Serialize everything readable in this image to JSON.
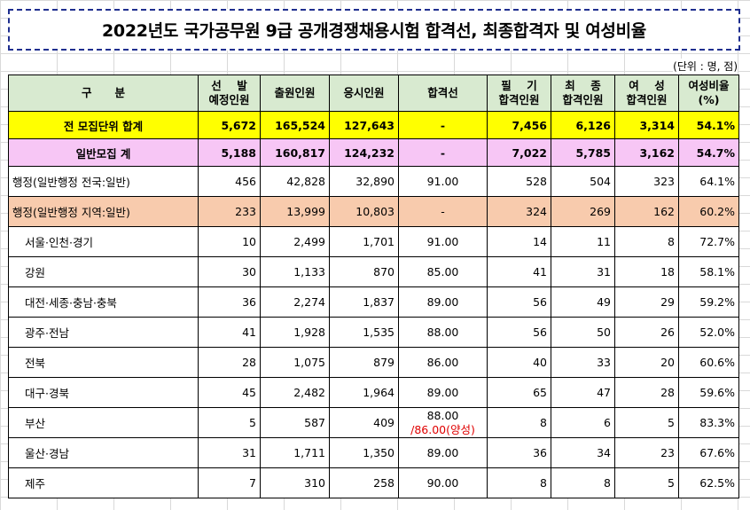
{
  "title": "2022년도 국가공무원 9급 공개경쟁채용시험 합격선, 최종합격자 및 여성비율",
  "unit": "(단위 : 명, 점)",
  "headers": {
    "category": "구      분",
    "planned_1": "선    발",
    "planned_2": "예정인원",
    "applicants": "출원인원",
    "takers": "응시인원",
    "cutoff": "합격선",
    "written_1": "필    기",
    "written_2": "합격인원",
    "final_1": "최    종",
    "final_2": "합격인원",
    "female_1": "여    성",
    "female_2": "합격인원",
    "female_ratio_1": "여성비율",
    "female_ratio_2": "(%)"
  },
  "rows": [
    {
      "label": "전 모집단위 합계",
      "planned": "5,672",
      "applicants": "165,524",
      "takers": "127,643",
      "cutoff": "-",
      "written": "7,456",
      "final": "6,126",
      "female": "3,314",
      "ratio": "54.1%"
    },
    {
      "label": "일반모집 계",
      "planned": "5,188",
      "applicants": "160,817",
      "takers": "124,232",
      "cutoff": "-",
      "written": "7,022",
      "final": "5,785",
      "female": "3,162",
      "ratio": "54.7%"
    },
    {
      "label": "행정(일반행정 전국:일반)",
      "planned": "456",
      "applicants": "42,828",
      "takers": "32,890",
      "cutoff": "91.00",
      "written": "528",
      "final": "504",
      "female": "323",
      "ratio": "64.1%"
    },
    {
      "label": "행정(일반행정 지역:일반)",
      "planned": "233",
      "applicants": "13,999",
      "takers": "10,803",
      "cutoff": "-",
      "written": "324",
      "final": "269",
      "female": "162",
      "ratio": "60.2%"
    },
    {
      "label": "서울·인천·경기",
      "planned": "10",
      "applicants": "2,499",
      "takers": "1,701",
      "cutoff": "91.00",
      "written": "14",
      "final": "11",
      "female": "8",
      "ratio": "72.7%"
    },
    {
      "label": "강원",
      "planned": "30",
      "applicants": "1,133",
      "takers": "870",
      "cutoff": "85.00",
      "written": "41",
      "final": "31",
      "female": "18",
      "ratio": "58.1%"
    },
    {
      "label": "대전·세종·충남·충북",
      "planned": "36",
      "applicants": "2,274",
      "takers": "1,837",
      "cutoff": "89.00",
      "written": "56",
      "final": "49",
      "female": "29",
      "ratio": "59.2%"
    },
    {
      "label": "광주·전남",
      "planned": "41",
      "applicants": "1,928",
      "takers": "1,535",
      "cutoff": "88.00",
      "written": "56",
      "final": "50",
      "female": "26",
      "ratio": "52.0%"
    },
    {
      "label": "전북",
      "planned": "28",
      "applicants": "1,075",
      "takers": "879",
      "cutoff": "86.00",
      "written": "40",
      "final": "33",
      "female": "20",
      "ratio": "60.6%"
    },
    {
      "label": "대구·경북",
      "planned": "45",
      "applicants": "2,482",
      "takers": "1,964",
      "cutoff": "89.00",
      "written": "65",
      "final": "47",
      "female": "28",
      "ratio": "59.6%"
    },
    {
      "label": "부산",
      "planned": "5",
      "applicants": "587",
      "takers": "409",
      "cutoff": "88.00",
      "cutoff_extra": "/86.00(양성)",
      "written": "8",
      "final": "6",
      "female": "5",
      "ratio": "83.3%"
    },
    {
      "label": "울산·경남",
      "planned": "31",
      "applicants": "1,711",
      "takers": "1,350",
      "cutoff": "89.00",
      "written": "36",
      "final": "34",
      "female": "23",
      "ratio": "67.6%"
    },
    {
      "label": "제주",
      "planned": "7",
      "applicants": "310",
      "takers": "258",
      "cutoff": "90.00",
      "written": "8",
      "final": "8",
      "female": "5",
      "ratio": "62.5%"
    }
  ],
  "colors": {
    "header_bg": "#d8ead0",
    "total_bg": "#ffff00",
    "general_bg": "#f7c6f5",
    "region_bg": "#f8cbad",
    "title_border": "#1f2f8f",
    "note_red": "#e00000"
  }
}
